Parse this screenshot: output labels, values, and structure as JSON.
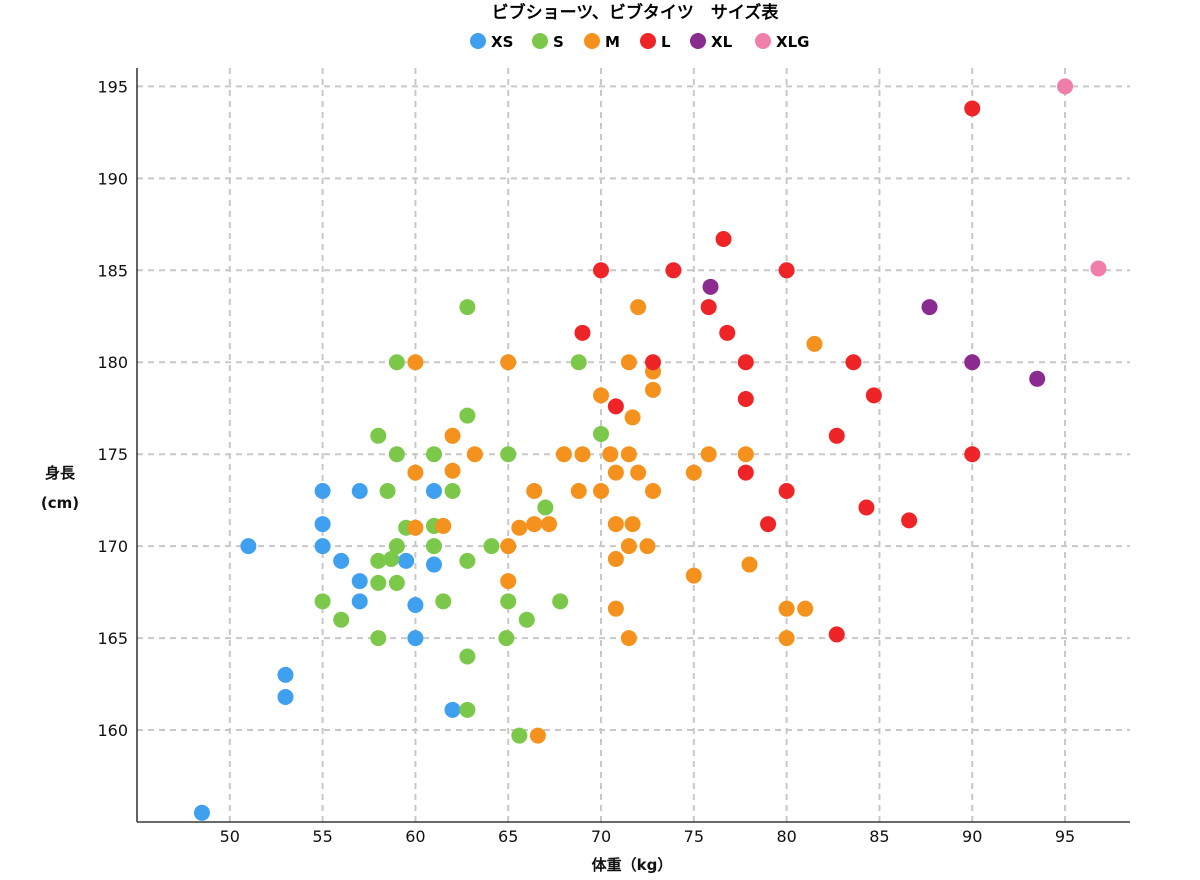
{
  "chart_data": {
    "type": "scatter",
    "title": "ビブショーツ、ビブタイツ　サイズ表",
    "xlabel": "体重（kg）",
    "ylabel_line1": "身長",
    "ylabel_line2": "(cm)",
    "xlim": [
      45,
      98.5
    ],
    "ylim": [
      155,
      196
    ],
    "xticks": [
      50,
      55,
      60,
      65,
      70,
      75,
      80,
      85,
      90,
      95
    ],
    "yticks": [
      160,
      165,
      170,
      175,
      180,
      185,
      190,
      195
    ],
    "grid": true,
    "legend_position": "top-center",
    "series": [
      {
        "name": "XS",
        "color": "#3fa0f0",
        "points": [
          [
            48.5,
            155.5
          ],
          [
            51,
            170
          ],
          [
            53,
            163
          ],
          [
            53,
            161.8
          ],
          [
            55,
            173
          ],
          [
            55,
            171.2
          ],
          [
            55,
            170
          ],
          [
            56,
            169.2
          ],
          [
            57,
            173
          ],
          [
            57,
            168.1
          ],
          [
            57,
            167
          ],
          [
            59.5,
            169.2
          ],
          [
            60,
            166.8
          ],
          [
            60,
            165
          ],
          [
            61,
            173
          ],
          [
            61,
            169
          ],
          [
            62,
            161.1
          ]
        ]
      },
      {
        "name": "S",
        "color": "#7cc84a",
        "points": [
          [
            55,
            167
          ],
          [
            56,
            166
          ],
          [
            58,
            176
          ],
          [
            58,
            169.2
          ],
          [
            58,
            168
          ],
          [
            58,
            165
          ],
          [
            58.5,
            173
          ],
          [
            58.7,
            169.3
          ],
          [
            59,
            180
          ],
          [
            59,
            175
          ],
          [
            59,
            170
          ],
          [
            59,
            168
          ],
          [
            59.5,
            171
          ],
          [
            61,
            175
          ],
          [
            61,
            171.1
          ],
          [
            61,
            170
          ],
          [
            61.5,
            167
          ],
          [
            62,
            173
          ],
          [
            62.8,
            183
          ],
          [
            62.8,
            177.1
          ],
          [
            62.8,
            169.2
          ],
          [
            62.8,
            164
          ],
          [
            62.8,
            161.1
          ],
          [
            64.1,
            170
          ],
          [
            64.9,
            165
          ],
          [
            65,
            175
          ],
          [
            65,
            167
          ],
          [
            65.6,
            159.7
          ],
          [
            66,
            166
          ],
          [
            67,
            172.1
          ],
          [
            67.8,
            167
          ],
          [
            68.8,
            180
          ],
          [
            70,
            176.1
          ]
        ]
      },
      {
        "name": "M",
        "color": "#f5921e",
        "points": [
          [
            60,
            180
          ],
          [
            60,
            174
          ],
          [
            60,
            171
          ],
          [
            61.5,
            171.1
          ],
          [
            62,
            176
          ],
          [
            62,
            174.1
          ],
          [
            63.2,
            175
          ],
          [
            65,
            180
          ],
          [
            65,
            170
          ],
          [
            65,
            168.1
          ],
          [
            65.6,
            171
          ],
          [
            66.4,
            173
          ],
          [
            66.4,
            171.2
          ],
          [
            66.6,
            159.7
          ],
          [
            67.2,
            171.2
          ],
          [
            68,
            175
          ],
          [
            68.8,
            173
          ],
          [
            69,
            175
          ],
          [
            70,
            178.2
          ],
          [
            70,
            173
          ],
          [
            70.5,
            175
          ],
          [
            70.8,
            174
          ],
          [
            70.8,
            171.2
          ],
          [
            70.8,
            169.3
          ],
          [
            70.8,
            166.6
          ],
          [
            71.5,
            180
          ],
          [
            71.5,
            175
          ],
          [
            71.5,
            170
          ],
          [
            71.5,
            165
          ],
          [
            71.7,
            177
          ],
          [
            71.7,
            171.2
          ],
          [
            72,
            183
          ],
          [
            72,
            174
          ],
          [
            72.5,
            170
          ],
          [
            72.8,
            179.5
          ],
          [
            72.8,
            178.5
          ],
          [
            72.8,
            173
          ],
          [
            75,
            174
          ],
          [
            75,
            168.4
          ],
          [
            75.8,
            175
          ],
          [
            77.8,
            175
          ],
          [
            78,
            169
          ],
          [
            80,
            166.6
          ],
          [
            80,
            165
          ],
          [
            81,
            166.6
          ],
          [
            81.5,
            181
          ]
        ]
      },
      {
        "name": "L",
        "color": "#ee2427",
        "points": [
          [
            69,
            181.6
          ],
          [
            70,
            185
          ],
          [
            70.8,
            177.6
          ],
          [
            72.8,
            180
          ],
          [
            73.9,
            185
          ],
          [
            75.8,
            183
          ],
          [
            76.6,
            186.7
          ],
          [
            76.8,
            181.6
          ],
          [
            77.8,
            180
          ],
          [
            77.8,
            178
          ],
          [
            77.8,
            174
          ],
          [
            79,
            171.2
          ],
          [
            80,
            185
          ],
          [
            80,
            173
          ],
          [
            82.7,
            176
          ],
          [
            82.7,
            165.2
          ],
          [
            83.6,
            180
          ],
          [
            84.3,
            172.1
          ],
          [
            84.7,
            178.2
          ],
          [
            86.6,
            171.4
          ],
          [
            90,
            193.8
          ],
          [
            90,
            175
          ]
        ]
      },
      {
        "name": "XL",
        "color": "#8b2a8f",
        "points": [
          [
            75.9,
            184.1
          ],
          [
            87.7,
            183
          ],
          [
            90,
            180
          ],
          [
            93.5,
            179.1
          ]
        ]
      },
      {
        "name": "XLG",
        "color": "#f07eaa",
        "points": [
          [
            95,
            195
          ],
          [
            96.8,
            185.1
          ]
        ]
      }
    ]
  }
}
